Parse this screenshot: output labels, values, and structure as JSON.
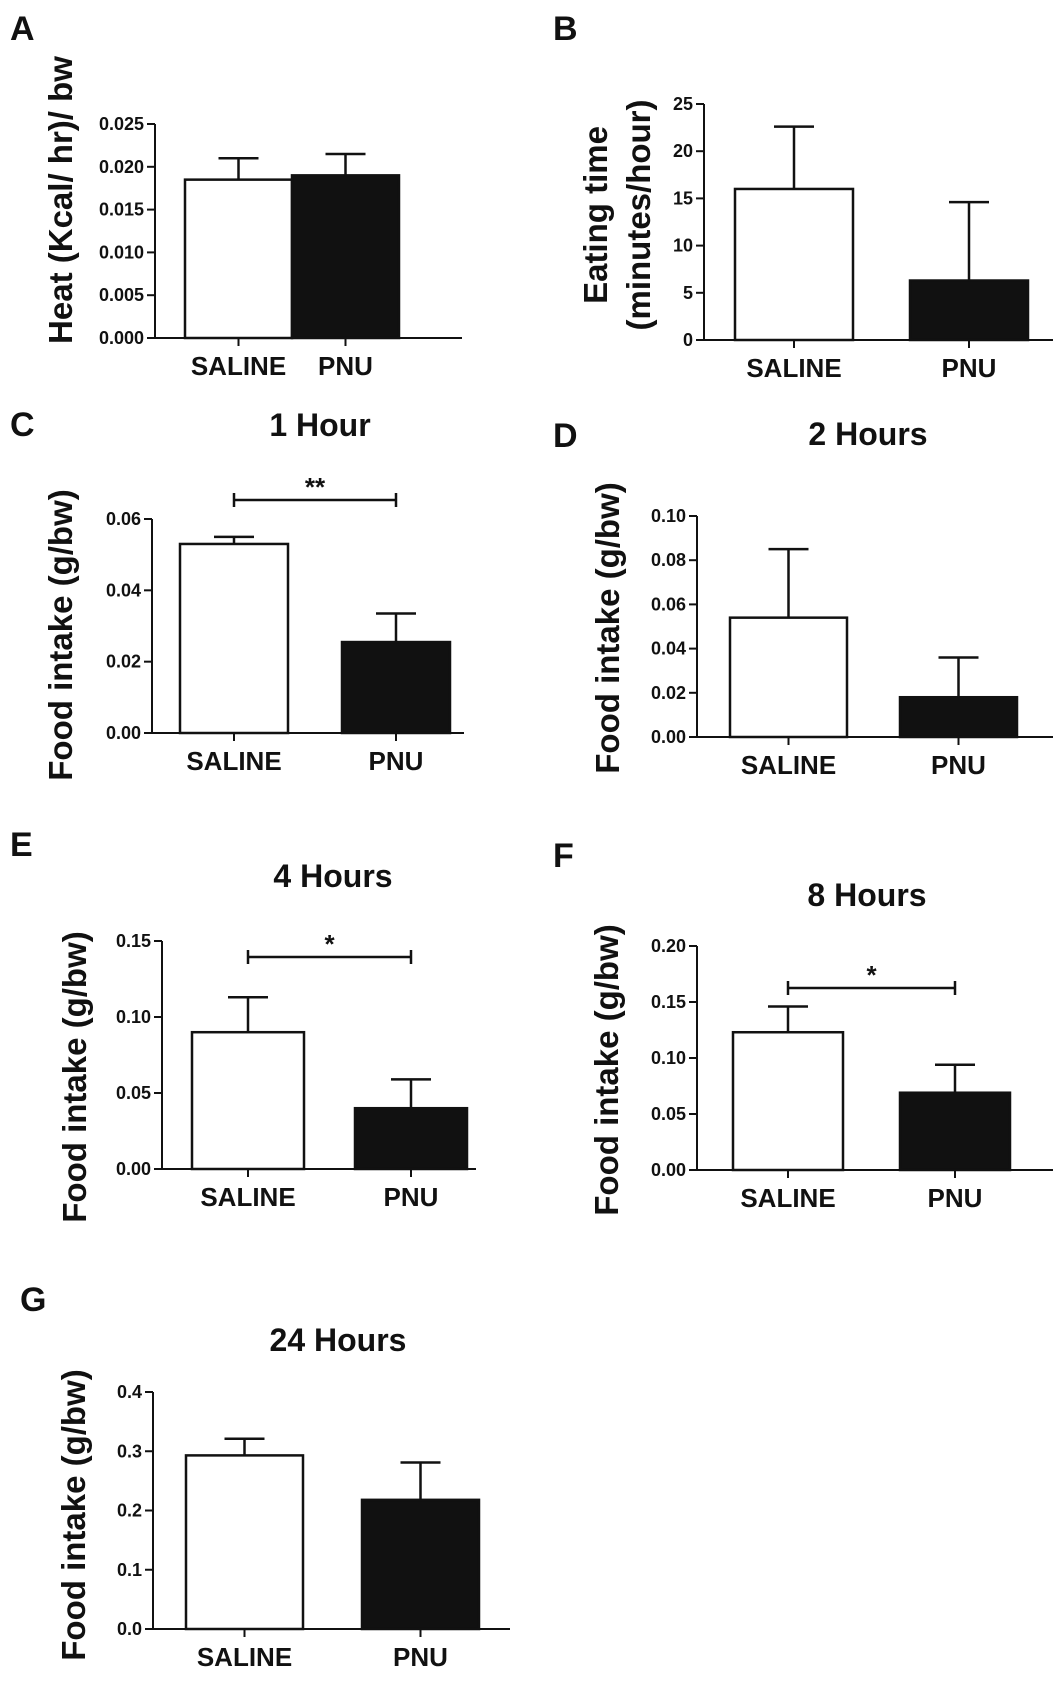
{
  "chart_data": [
    {
      "panel": "A",
      "type": "bar",
      "title": "",
      "ylabel": "Heat (Kcal/ hr)/ bw",
      "xlabel": "",
      "categories": [
        "SALINE",
        "PNU"
      ],
      "values": [
        0.0185,
        0.019
      ],
      "errors": [
        0.0025,
        0.0025
      ],
      "fills": [
        "#ffffff",
        "#111111"
      ],
      "ylim": [
        0,
        0.025
      ],
      "yticks": [
        0,
        0.005,
        0.01,
        0.015,
        0.02,
        0.025
      ],
      "ytick_labels": [
        "0.000",
        "0.005",
        "0.010",
        "0.015",
        "0.020",
        "0.025"
      ],
      "significance": null
    },
    {
      "panel": "B",
      "type": "bar",
      "title": "",
      "ylabel": "Eating time",
      "ylabel2": "(minutes/hour)",
      "xlabel": "",
      "categories": [
        "SALINE",
        "PNU"
      ],
      "values": [
        16.0,
        6.3
      ],
      "errors": [
        6.6,
        8.3
      ],
      "fills": [
        "#ffffff",
        "#111111"
      ],
      "ylim": [
        0,
        25
      ],
      "yticks": [
        0,
        5,
        10,
        15,
        20,
        25
      ],
      "ytick_labels": [
        "0",
        "5",
        "10",
        "15",
        "20",
        "25"
      ],
      "significance": null
    },
    {
      "panel": "C",
      "type": "bar",
      "title": "1 Hour",
      "ylabel": "Food intake (g/bw)",
      "xlabel": "",
      "categories": [
        "SALINE",
        "PNU"
      ],
      "values": [
        0.053,
        0.0255
      ],
      "errors": [
        0.002,
        0.008
      ],
      "fills": [
        "#ffffff",
        "#111111"
      ],
      "ylim": [
        0,
        0.06
      ],
      "yticks": [
        0,
        0.02,
        0.04,
        0.06
      ],
      "ytick_labels": [
        "0.00",
        "0.02",
        "0.04",
        "0.06"
      ],
      "significance": "**"
    },
    {
      "panel": "D",
      "type": "bar",
      "title": "2 Hours",
      "ylabel": "Food intake (g/bw)",
      "xlabel": "",
      "categories": [
        "SALINE",
        "PNU"
      ],
      "values": [
        0.054,
        0.018
      ],
      "errors": [
        0.031,
        0.018
      ],
      "fills": [
        "#ffffff",
        "#111111"
      ],
      "ylim": [
        0,
        0.1
      ],
      "yticks": [
        0,
        0.02,
        0.04,
        0.06,
        0.08,
        0.1
      ],
      "ytick_labels": [
        "0.00",
        "0.02",
        "0.04",
        "0.06",
        "0.08",
        "0.10"
      ],
      "significance": null
    },
    {
      "panel": "E",
      "type": "bar",
      "title": "4 Hours",
      "ylabel": "Food intake (g/bw)",
      "xlabel": "",
      "categories": [
        "SALINE",
        "PNU"
      ],
      "values": [
        0.09,
        0.04
      ],
      "errors": [
        0.023,
        0.019
      ],
      "fills": [
        "#ffffff",
        "#111111"
      ],
      "ylim": [
        0,
        0.15
      ],
      "yticks": [
        0,
        0.05,
        0.1,
        0.15
      ],
      "ytick_labels": [
        "0.00",
        "0.05",
        "0.10",
        "0.15"
      ],
      "significance": "*"
    },
    {
      "panel": "F",
      "type": "bar",
      "title": "8 Hours",
      "ylabel": "Food intake (g/bw)",
      "xlabel": "",
      "categories": [
        "SALINE",
        "PNU"
      ],
      "values": [
        0.123,
        0.069
      ],
      "errors": [
        0.023,
        0.025
      ],
      "fills": [
        "#ffffff",
        "#111111"
      ],
      "ylim": [
        0,
        0.2
      ],
      "yticks": [
        0,
        0.05,
        0.1,
        0.15,
        0.2
      ],
      "ytick_labels": [
        "0.00",
        "0.05",
        "0.10",
        "0.15",
        "0.20"
      ],
      "significance": "*"
    },
    {
      "panel": "G",
      "type": "bar",
      "title": "24 Hours",
      "ylabel": "Food intake (g/bw)",
      "xlabel": "",
      "categories": [
        "SALINE",
        "PNU"
      ],
      "values": [
        0.293,
        0.218
      ],
      "errors": [
        0.028,
        0.063
      ],
      "fills": [
        "#ffffff",
        "#111111"
      ],
      "ylim": [
        0,
        0.4
      ],
      "yticks": [
        0,
        0.1,
        0.2,
        0.3,
        0.4
      ],
      "ytick_labels": [
        "0.0",
        "0.1",
        "0.2",
        "0.3",
        "0.4"
      ],
      "significance": null
    }
  ]
}
